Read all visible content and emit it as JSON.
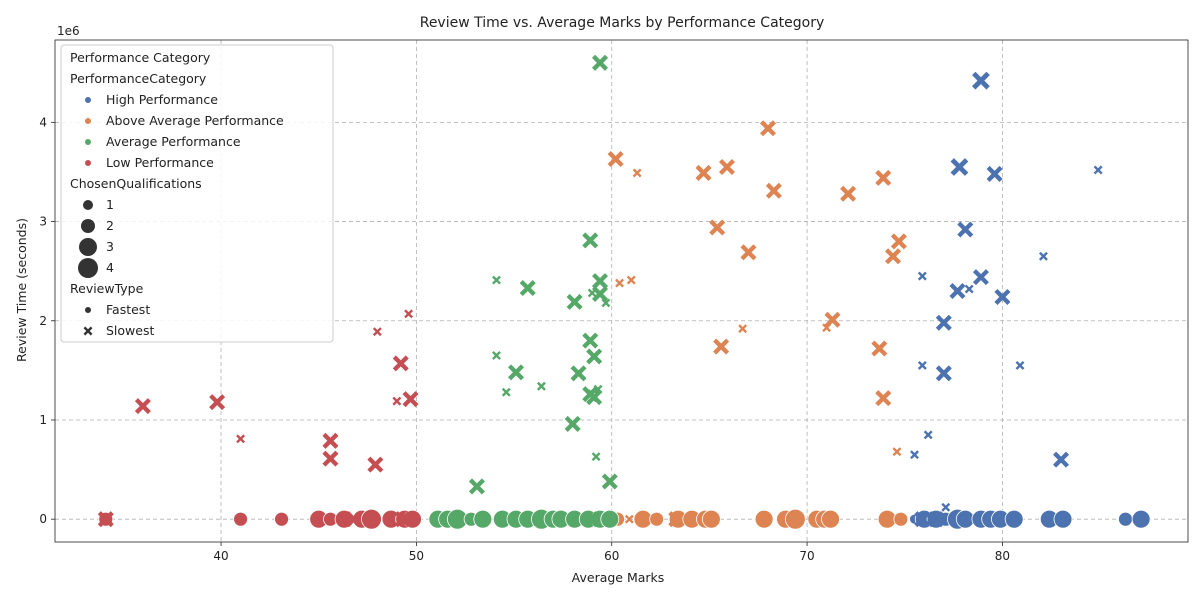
{
  "chart_data": {
    "type": "scatter",
    "title": "Review Time vs. Average Marks by Performance Category",
    "xlabel": "Average Marks",
    "ylabel": "Review Time (seconds)",
    "y_offset_text": "1e6",
    "xlim": [
      31.5,
      89.5
    ],
    "ylim": [
      -230000,
      4830000
    ],
    "x_ticks": [
      40,
      50,
      60,
      70,
      80
    ],
    "y_ticks": [
      0,
      1,
      2,
      3,
      4
    ],
    "grid": true,
    "legend": {
      "placement": "top-left",
      "title": "Performance Category",
      "hue_title": "PerformanceCategory",
      "size_title": "ChosenQualifications",
      "style_title": "ReviewType",
      "hue_entries": [
        {
          "label": "High Performance",
          "color": "#4c72b0"
        },
        {
          "label": "Above Average Performance",
          "color": "#dd8452"
        },
        {
          "label": "Average Performance",
          "color": "#55a868"
        },
        {
          "label": "Low Performance",
          "color": "#c44e52"
        }
      ],
      "size_entries": [
        {
          "label": "1",
          "size": 1
        },
        {
          "label": "2",
          "size": 2
        },
        {
          "label": "3",
          "size": 3
        },
        {
          "label": "4",
          "size": 4
        }
      ],
      "style_entries": [
        {
          "label": "Fastest",
          "marker": "circle"
        },
        {
          "label": "Slowest",
          "marker": "x"
        }
      ]
    },
    "series": [
      {
        "name": "High Performance",
        "color": "#4c72b0",
        "points": [
          {
            "x": 78.9,
            "y": 4420000,
            "s": 4,
            "m": "x"
          },
          {
            "x": 84.9,
            "y": 3520000,
            "s": 1,
            "m": "x"
          },
          {
            "x": 77.8,
            "y": 3550000,
            "s": 4,
            "m": "x"
          },
          {
            "x": 79.6,
            "y": 3480000,
            "s": 3,
            "m": "x"
          },
          {
            "x": 78.1,
            "y": 2920000,
            "s": 3,
            "m": "x"
          },
          {
            "x": 82.1,
            "y": 2650000,
            "s": 1,
            "m": "x"
          },
          {
            "x": 75.9,
            "y": 2450000,
            "s": 1,
            "m": "x"
          },
          {
            "x": 78.9,
            "y": 2440000,
            "s": 3,
            "m": "x"
          },
          {
            "x": 77.7,
            "y": 2300000,
            "s": 3,
            "m": "x"
          },
          {
            "x": 78.3,
            "y": 2320000,
            "s": 1,
            "m": "x"
          },
          {
            "x": 80.0,
            "y": 2240000,
            "s": 3,
            "m": "x"
          },
          {
            "x": 77.0,
            "y": 1980000,
            "s": 3,
            "m": "x"
          },
          {
            "x": 75.9,
            "y": 1550000,
            "s": 1,
            "m": "x"
          },
          {
            "x": 80.9,
            "y": 1550000,
            "s": 1,
            "m": "x"
          },
          {
            "x": 77.0,
            "y": 1470000,
            "s": 3,
            "m": "x"
          },
          {
            "x": 76.2,
            "y": 850000,
            "s": 1,
            "m": "x"
          },
          {
            "x": 75.5,
            "y": 650000,
            "s": 1,
            "m": "x"
          },
          {
            "x": 83.0,
            "y": 600000,
            "s": 3,
            "m": "x"
          },
          {
            "x": 77.1,
            "y": 120000,
            "s": 1,
            "m": "x"
          },
          {
            "x": 75.5,
            "y": 0,
            "s": 1,
            "m": "circle"
          },
          {
            "x": 76.0,
            "y": 0,
            "s": 3,
            "m": "circle"
          },
          {
            "x": 76.6,
            "y": 0,
            "s": 3,
            "m": "circle"
          },
          {
            "x": 77.1,
            "y": 0,
            "s": 2,
            "m": "circle"
          },
          {
            "x": 77.7,
            "y": 0,
            "s": 4,
            "m": "circle"
          },
          {
            "x": 78.1,
            "y": 0,
            "s": 3,
            "m": "circle"
          },
          {
            "x": 78.9,
            "y": 0,
            "s": 3,
            "m": "circle"
          },
          {
            "x": 79.4,
            "y": 0,
            "s": 3,
            "m": "circle"
          },
          {
            "x": 79.9,
            "y": 0,
            "s": 3,
            "m": "circle"
          },
          {
            "x": 80.6,
            "y": 0,
            "s": 3,
            "m": "circle"
          },
          {
            "x": 82.4,
            "y": 0,
            "s": 3,
            "m": "circle"
          },
          {
            "x": 83.1,
            "y": 0,
            "s": 3,
            "m": "circle"
          },
          {
            "x": 86.3,
            "y": 0,
            "s": 2,
            "m": "circle"
          },
          {
            "x": 87.1,
            "y": 0,
            "s": 3,
            "m": "circle"
          },
          {
            "x": 75.9,
            "y": 0,
            "s": 3,
            "m": "x"
          },
          {
            "x": 76.6,
            "y": 0,
            "s": 3,
            "m": "x"
          }
        ]
      },
      {
        "name": "Above Average Performance",
        "color": "#dd8452",
        "points": [
          {
            "x": 68.0,
            "y": 3940000,
            "s": 3,
            "m": "x"
          },
          {
            "x": 60.2,
            "y": 3630000,
            "s": 3,
            "m": "x"
          },
          {
            "x": 65.9,
            "y": 3550000,
            "s": 3,
            "m": "x"
          },
          {
            "x": 61.3,
            "y": 3490000,
            "s": 1,
            "m": "x"
          },
          {
            "x": 64.7,
            "y": 3490000,
            "s": 3,
            "m": "x"
          },
          {
            "x": 73.9,
            "y": 3440000,
            "s": 3,
            "m": "x"
          },
          {
            "x": 68.3,
            "y": 3310000,
            "s": 3,
            "m": "x"
          },
          {
            "x": 72.1,
            "y": 3280000,
            "s": 3,
            "m": "x"
          },
          {
            "x": 65.4,
            "y": 2940000,
            "s": 3,
            "m": "x"
          },
          {
            "x": 74.7,
            "y": 2800000,
            "s": 3,
            "m": "x"
          },
          {
            "x": 67.0,
            "y": 2690000,
            "s": 3,
            "m": "x"
          },
          {
            "x": 74.4,
            "y": 2650000,
            "s": 3,
            "m": "x"
          },
          {
            "x": 61.0,
            "y": 2410000,
            "s": 1,
            "m": "x"
          },
          {
            "x": 60.4,
            "y": 2380000,
            "s": 1,
            "m": "x"
          },
          {
            "x": 71.3,
            "y": 2010000,
            "s": 3,
            "m": "x"
          },
          {
            "x": 71.0,
            "y": 1930000,
            "s": 1,
            "m": "x"
          },
          {
            "x": 66.7,
            "y": 1920000,
            "s": 1,
            "m": "x"
          },
          {
            "x": 65.6,
            "y": 1740000,
            "s": 3,
            "m": "x"
          },
          {
            "x": 73.7,
            "y": 1720000,
            "s": 3,
            "m": "x"
          },
          {
            "x": 73.9,
            "y": 1220000,
            "s": 3,
            "m": "x"
          },
          {
            "x": 74.6,
            "y": 680000,
            "s": 1,
            "m": "x"
          },
          {
            "x": 60.3,
            "y": 0,
            "s": 2,
            "m": "circle"
          },
          {
            "x": 61.6,
            "y": 0,
            "s": 3,
            "m": "circle"
          },
          {
            "x": 62.3,
            "y": 0,
            "s": 2,
            "m": "circle"
          },
          {
            "x": 63.4,
            "y": 0,
            "s": 3,
            "m": "circle"
          },
          {
            "x": 64.1,
            "y": 0,
            "s": 3,
            "m": "circle"
          },
          {
            "x": 64.8,
            "y": 0,
            "s": 3,
            "m": "circle"
          },
          {
            "x": 65.1,
            "y": 0,
            "s": 3,
            "m": "circle"
          },
          {
            "x": 67.8,
            "y": 0,
            "s": 3,
            "m": "circle"
          },
          {
            "x": 68.9,
            "y": 0,
            "s": 3,
            "m": "circle"
          },
          {
            "x": 69.4,
            "y": 0,
            "s": 4,
            "m": "circle"
          },
          {
            "x": 70.5,
            "y": 0,
            "s": 3,
            "m": "circle"
          },
          {
            "x": 70.9,
            "y": 0,
            "s": 3,
            "m": "circle"
          },
          {
            "x": 71.2,
            "y": 0,
            "s": 3,
            "m": "circle"
          },
          {
            "x": 74.1,
            "y": 0,
            "s": 3,
            "m": "circle"
          },
          {
            "x": 74.8,
            "y": 0,
            "s": 2,
            "m": "circle"
          },
          {
            "x": 60.9,
            "y": 0,
            "s": 1,
            "m": "x"
          },
          {
            "x": 63.3,
            "y": 0,
            "s": 3,
            "m": "x"
          }
        ]
      },
      {
        "name": "Average Performance",
        "color": "#55a868",
        "points": [
          {
            "x": 59.4,
            "y": 4600000,
            "s": 3,
            "m": "x"
          },
          {
            "x": 58.9,
            "y": 2810000,
            "s": 3,
            "m": "x"
          },
          {
            "x": 54.1,
            "y": 2410000,
            "s": 1,
            "m": "x"
          },
          {
            "x": 59.4,
            "y": 2400000,
            "s": 3,
            "m": "x"
          },
          {
            "x": 55.7,
            "y": 2330000,
            "s": 3,
            "m": "x"
          },
          {
            "x": 59.0,
            "y": 2280000,
            "s": 1,
            "m": "x"
          },
          {
            "x": 59.4,
            "y": 2270000,
            "s": 3,
            "m": "x"
          },
          {
            "x": 58.1,
            "y": 2190000,
            "s": 3,
            "m": "x"
          },
          {
            "x": 59.7,
            "y": 2180000,
            "s": 1,
            "m": "x"
          },
          {
            "x": 58.9,
            "y": 1800000,
            "s": 3,
            "m": "x"
          },
          {
            "x": 54.1,
            "y": 1650000,
            "s": 1,
            "m": "x"
          },
          {
            "x": 59.1,
            "y": 1640000,
            "s": 3,
            "m": "x"
          },
          {
            "x": 55.1,
            "y": 1480000,
            "s": 3,
            "m": "x"
          },
          {
            "x": 58.3,
            "y": 1470000,
            "s": 3,
            "m": "x"
          },
          {
            "x": 56.4,
            "y": 1340000,
            "s": 1,
            "m": "x"
          },
          {
            "x": 59.3,
            "y": 1310000,
            "s": 1,
            "m": "x"
          },
          {
            "x": 54.6,
            "y": 1280000,
            "s": 1,
            "m": "x"
          },
          {
            "x": 58.9,
            "y": 1260000,
            "s": 3,
            "m": "x"
          },
          {
            "x": 59.1,
            "y": 1230000,
            "s": 3,
            "m": "x"
          },
          {
            "x": 58.0,
            "y": 960000,
            "s": 3,
            "m": "x"
          },
          {
            "x": 59.2,
            "y": 630000,
            "s": 1,
            "m": "x"
          },
          {
            "x": 59.9,
            "y": 380000,
            "s": 3,
            "m": "x"
          },
          {
            "x": 53.1,
            "y": 330000,
            "s": 3,
            "m": "x"
          },
          {
            "x": 51.1,
            "y": 0,
            "s": 3,
            "m": "circle"
          },
          {
            "x": 51.6,
            "y": 0,
            "s": 3,
            "m": "circle"
          },
          {
            "x": 52.1,
            "y": 0,
            "s": 4,
            "m": "circle"
          },
          {
            "x": 52.8,
            "y": 0,
            "s": 2,
            "m": "circle"
          },
          {
            "x": 53.4,
            "y": 0,
            "s": 3,
            "m": "circle"
          },
          {
            "x": 54.4,
            "y": 0,
            "s": 3,
            "m": "circle"
          },
          {
            "x": 55.1,
            "y": 0,
            "s": 3,
            "m": "circle"
          },
          {
            "x": 55.7,
            "y": 0,
            "s": 3,
            "m": "circle"
          },
          {
            "x": 56.4,
            "y": 0,
            "s": 4,
            "m": "circle"
          },
          {
            "x": 57.0,
            "y": 0,
            "s": 3,
            "m": "circle"
          },
          {
            "x": 57.4,
            "y": 0,
            "s": 3,
            "m": "circle"
          },
          {
            "x": 58.1,
            "y": 0,
            "s": 3,
            "m": "circle"
          },
          {
            "x": 58.8,
            "y": 0,
            "s": 3,
            "m": "circle"
          },
          {
            "x": 59.4,
            "y": 0,
            "s": 3,
            "m": "circle"
          },
          {
            "x": 59.9,
            "y": 0,
            "s": 3,
            "m": "circle"
          },
          {
            "x": 58.9,
            "y": 0,
            "s": 3,
            "m": "x"
          }
        ]
      },
      {
        "name": "Low Performance",
        "color": "#c44e52",
        "points": [
          {
            "x": 49.6,
            "y": 2070000,
            "s": 1,
            "m": "x"
          },
          {
            "x": 48.0,
            "y": 1890000,
            "s": 1,
            "m": "x"
          },
          {
            "x": 49.2,
            "y": 1570000,
            "s": 3,
            "m": "x"
          },
          {
            "x": 49.7,
            "y": 1210000,
            "s": 3,
            "m": "x"
          },
          {
            "x": 49.0,
            "y": 1190000,
            "s": 1,
            "m": "x"
          },
          {
            "x": 39.8,
            "y": 1180000,
            "s": 3,
            "m": "x"
          },
          {
            "x": 36.0,
            "y": 1140000,
            "s": 3,
            "m": "x"
          },
          {
            "x": 41.0,
            "y": 810000,
            "s": 1,
            "m": "x"
          },
          {
            "x": 45.6,
            "y": 790000,
            "s": 3,
            "m": "x"
          },
          {
            "x": 45.6,
            "y": 610000,
            "s": 3,
            "m": "x"
          },
          {
            "x": 47.9,
            "y": 550000,
            "s": 3,
            "m": "x"
          },
          {
            "x": 34.1,
            "y": 0,
            "s": 2,
            "m": "circle"
          },
          {
            "x": 41.0,
            "y": 0,
            "s": 2,
            "m": "circle"
          },
          {
            "x": 43.1,
            "y": 0,
            "s": 2,
            "m": "circle"
          },
          {
            "x": 45.0,
            "y": 0,
            "s": 3,
            "m": "circle"
          },
          {
            "x": 45.6,
            "y": 0,
            "s": 2,
            "m": "circle"
          },
          {
            "x": 46.3,
            "y": 0,
            "s": 3,
            "m": "circle"
          },
          {
            "x": 47.2,
            "y": 0,
            "s": 3,
            "m": "circle"
          },
          {
            "x": 47.7,
            "y": 0,
            "s": 4,
            "m": "circle"
          },
          {
            "x": 48.7,
            "y": 0,
            "s": 3,
            "m": "circle"
          },
          {
            "x": 49.4,
            "y": 0,
            "s": 3,
            "m": "circle"
          },
          {
            "x": 49.8,
            "y": 0,
            "s": 3,
            "m": "circle"
          },
          {
            "x": 34.1,
            "y": 0,
            "s": 3,
            "m": "x"
          },
          {
            "x": 46.8,
            "y": 0,
            "s": 3,
            "m": "x"
          },
          {
            "x": 49.3,
            "y": 0,
            "s": 3,
            "m": "x"
          }
        ]
      }
    ]
  }
}
